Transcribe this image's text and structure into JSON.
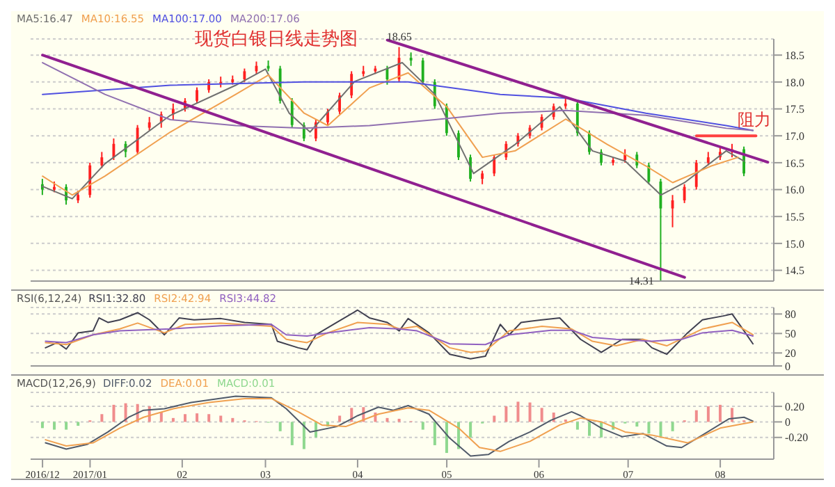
{
  "chart_data": [
    {
      "type": "candlestick",
      "title": "现货白银日线走势图",
      "legend": "top left",
      "grid": "y",
      "tick_labels": "y",
      "xlim": [
        "2016-12-12",
        "2017-08-19"
      ],
      "ylim": [
        14.3,
        18.8
      ],
      "yticks": [
        {
          "value": 14.5,
          "label": "14.5"
        },
        {
          "value": 15,
          "label": "15.0"
        },
        {
          "value": 15.5,
          "label": "15.5"
        },
        {
          "value": 16,
          "label": "16.0"
        },
        {
          "value": 16.5,
          "label": "16.5"
        },
        {
          "value": 17,
          "label": "17.0"
        },
        {
          "value": 17.5,
          "label": "17.5"
        },
        {
          "value": 18,
          "label": "18.0"
        },
        {
          "value": 18.5,
          "label": "18.5"
        }
      ],
      "x": [
        "2016-12-16",
        "2016-12-20",
        "2016-12-24",
        "2016-12-28",
        "2017-01-01",
        "2017-01-05",
        "2017-01-09",
        "2017-01-13",
        "2017-01-17",
        "2017-01-21",
        "2017-01-25",
        "2017-01-29",
        "2017-02-02",
        "2017-02-06",
        "2017-02-10",
        "2017-02-14",
        "2017-02-18",
        "2017-02-22",
        "2017-02-26",
        "2017-03-02",
        "2017-03-06",
        "2017-03-10",
        "2017-03-14",
        "2017-03-18",
        "2017-03-22",
        "2017-03-26",
        "2017-03-30",
        "2017-04-03",
        "2017-04-07",
        "2017-04-11",
        "2017-04-15",
        "2017-04-19",
        "2017-04-23",
        "2017-04-27",
        "2017-05-01",
        "2017-05-05",
        "2017-05-09",
        "2017-05-13",
        "2017-05-17",
        "2017-05-21",
        "2017-05-25",
        "2017-05-29",
        "2017-06-02",
        "2017-06-06",
        "2017-06-10",
        "2017-06-14",
        "2017-06-18",
        "2017-06-22",
        "2017-06-26",
        "2017-06-30",
        "2017-07-04",
        "2017-07-08",
        "2017-07-12",
        "2017-07-16",
        "2017-07-20",
        "2017-07-24",
        "2017-07-28",
        "2017-08-01",
        "2017-08-05",
        "2017-08-09"
      ],
      "ohlc": [
        [
          16.1,
          16.2,
          15.9,
          16.0
        ],
        [
          16.0,
          16.15,
          15.95,
          16.05
        ],
        [
          16.05,
          16.1,
          15.72,
          15.8
        ],
        [
          15.8,
          15.98,
          15.75,
          15.9
        ],
        [
          15.9,
          16.5,
          15.85,
          16.45
        ],
        [
          16.45,
          16.7,
          16.4,
          16.6
        ],
        [
          16.6,
          16.95,
          16.55,
          16.85
        ],
        [
          16.85,
          16.9,
          16.6,
          16.7
        ],
        [
          16.7,
          17.2,
          16.65,
          17.15
        ],
        [
          17.15,
          17.35,
          17.1,
          17.25
        ],
        [
          17.25,
          17.45,
          17.15,
          17.4
        ],
        [
          17.4,
          17.6,
          17.3,
          17.5
        ],
        [
          17.5,
          17.7,
          17.45,
          17.65
        ],
        [
          17.65,
          17.9,
          17.6,
          17.85
        ],
        [
          17.85,
          18.05,
          17.8,
          18.0
        ],
        [
          18.0,
          18.1,
          17.9,
          18.0
        ],
        [
          18.0,
          18.12,
          17.95,
          18.05
        ],
        [
          18.05,
          18.25,
          18.0,
          18.2
        ],
        [
          18.2,
          18.38,
          18.15,
          18.3
        ],
        [
          18.3,
          18.4,
          18.2,
          18.25
        ],
        [
          18.25,
          18.3,
          17.6,
          17.65
        ],
        [
          17.65,
          17.7,
          17.15,
          17.2
        ],
        [
          17.2,
          17.25,
          16.9,
          16.95
        ],
        [
          16.95,
          17.3,
          16.9,
          17.25
        ],
        [
          17.25,
          17.5,
          17.2,
          17.45
        ],
        [
          17.45,
          17.8,
          17.4,
          17.75
        ],
        [
          17.75,
          18.2,
          17.7,
          18.15
        ],
        [
          18.15,
          18.3,
          18.1,
          18.2
        ],
        [
          18.2,
          18.3,
          18.15,
          18.25
        ],
        [
          18.25,
          18.3,
          17.95,
          18.05
        ],
        [
          18.05,
          18.65,
          18.0,
          18.45
        ],
        [
          18.45,
          18.55,
          18.3,
          18.4
        ],
        [
          18.4,
          18.45,
          17.95,
          18.0
        ],
        [
          18.0,
          18.05,
          17.5,
          17.55
        ],
        [
          17.55,
          17.6,
          17.0,
          17.05
        ],
        [
          17.05,
          17.1,
          16.55,
          16.6
        ],
        [
          16.6,
          16.65,
          16.15,
          16.2
        ],
        [
          16.2,
          16.35,
          16.1,
          16.3
        ],
        [
          16.3,
          16.65,
          16.25,
          16.6
        ],
        [
          16.6,
          16.9,
          16.55,
          16.85
        ],
        [
          16.85,
          17.05,
          16.8,
          17.0
        ],
        [
          17.0,
          17.2,
          16.95,
          17.15
        ],
        [
          17.15,
          17.4,
          17.1,
          17.35
        ],
        [
          17.35,
          17.6,
          17.3,
          17.55
        ],
        [
          17.55,
          17.72,
          17.5,
          17.6
        ],
        [
          17.6,
          17.65,
          17.0,
          17.05
        ],
        [
          17.05,
          17.1,
          16.65,
          16.7
        ],
        [
          16.7,
          16.75,
          16.45,
          16.5
        ],
        [
          16.5,
          16.6,
          16.45,
          16.55
        ],
        [
          16.55,
          16.75,
          16.5,
          16.65
        ],
        [
          16.65,
          16.7,
          16.4,
          16.45
        ],
        [
          16.45,
          16.5,
          16.1,
          16.15
        ],
        [
          16.15,
          16.2,
          14.31,
          15.65
        ],
        [
          15.65,
          15.9,
          15.3,
          15.8
        ],
        [
          15.8,
          16.1,
          15.75,
          16.05
        ],
        [
          16.05,
          16.55,
          16.0,
          16.5
        ],
        [
          16.5,
          16.7,
          16.45,
          16.6
        ],
        [
          16.6,
          16.8,
          16.55,
          16.7
        ],
        [
          16.7,
          16.85,
          16.6,
          16.75
        ],
        [
          16.75,
          16.8,
          16.25,
          16.3
        ]
      ],
      "colors": [
        "#20b020",
        "#ff2020",
        "#20b020",
        "#ff2020",
        "#ff2020",
        "#ff2020",
        "#ff2020",
        "#20b020",
        "#ff2020",
        "#ff2020",
        "#ff2020",
        "#ff2020",
        "#ff2020",
        "#ff2020",
        "#ff2020",
        "#ff2020",
        "#ff2020",
        "#ff2020",
        "#ff2020",
        "#20b020",
        "#20b020",
        "#20b020",
        "#20b020",
        "#ff2020",
        "#ff2020",
        "#ff2020",
        "#ff2020",
        "#ff2020",
        "#ff2020",
        "#20b020",
        "#ff2020",
        "#20b020",
        "#20b020",
        "#20b020",
        "#20b020",
        "#20b020",
        "#20b020",
        "#ff2020",
        "#ff2020",
        "#ff2020",
        "#ff2020",
        "#ff2020",
        "#ff2020",
        "#ff2020",
        "#ff2020",
        "#20b020",
        "#20b020",
        "#20b020",
        "#ff2020",
        "#ff2020",
        "#20b020",
        "#20b020",
        "#20b020",
        "#ff2020",
        "#ff2020",
        "#ff2020",
        "#ff2020",
        "#ff2020",
        "#ff2020",
        "#20b020"
      ],
      "series": [
        {
          "name": "MA5:16.47",
          "type": "line",
          "color": "#707070",
          "x": [
            "2016-12-16",
            "2016-12-26",
            "2017-01-06",
            "2017-01-28",
            "2017-02-19",
            "2017-03-01",
            "2017-03-09",
            "2017-03-16",
            "2017-03-31",
            "2017-04-16",
            "2017-04-27",
            "2017-05-10",
            "2017-05-24",
            "2017-06-08",
            "2017-06-19",
            "2017-06-30",
            "2017-07-12",
            "2017-07-20",
            "2017-08-03",
            "2017-08-09"
          ],
          "values": [
            16.06,
            15.83,
            16.48,
            17.38,
            17.94,
            18.24,
            17.42,
            17.07,
            18.01,
            18.36,
            17.77,
            16.3,
            16.84,
            17.54,
            16.72,
            16.53,
            15.9,
            16.13,
            16.72,
            16.53
          ]
        },
        {
          "name": "MA10:16.55",
          "type": "line",
          "color": "#f0a050",
          "x": [
            "2016-12-16",
            "2016-12-26",
            "2017-01-06",
            "2017-01-28",
            "2017-02-19",
            "2017-03-02",
            "2017-03-14",
            "2017-03-22",
            "2017-04-05",
            "2017-04-18",
            "2017-05-01",
            "2017-05-13",
            "2017-05-24",
            "2017-06-10",
            "2017-06-24",
            "2017-07-07",
            "2017-07-16",
            "2017-07-29",
            "2017-08-07"
          ],
          "values": [
            16.25,
            15.9,
            16.25,
            17.07,
            17.77,
            18.13,
            17.42,
            17.19,
            17.89,
            18.17,
            17.54,
            16.6,
            16.72,
            17.31,
            16.84,
            16.44,
            16.13,
            16.44,
            16.6
          ]
        },
        {
          "name": "MA100:17.00",
          "type": "line",
          "color": "#5050e0",
          "x": [
            "2016-12-16",
            "2017-01-28",
            "2017-03-14",
            "2017-04-18",
            "2017-05-19",
            "2017-06-10",
            "2017-07-07",
            "2017-08-03",
            "2017-08-12"
          ],
          "values": [
            17.77,
            17.94,
            18.0,
            18.0,
            17.77,
            17.7,
            17.42,
            17.19,
            17.1
          ]
        },
        {
          "name": "MA200:17.06",
          "type": "line",
          "color": "#9070b0",
          "x": [
            "2016-12-16",
            "2017-01-06",
            "2017-01-28",
            "2017-02-19",
            "2017-03-14",
            "2017-04-05",
            "2017-04-27",
            "2017-05-19",
            "2017-06-10",
            "2017-07-07",
            "2017-08-03",
            "2017-08-12"
          ],
          "values": [
            18.36,
            17.77,
            17.3,
            17.19,
            17.14,
            17.19,
            17.3,
            17.42,
            17.47,
            17.38,
            17.14,
            17.1
          ]
        },
        {
          "type": "line",
          "color": "#902090",
          "x": [
            "2016-12-16",
            "2017-07-20"
          ],
          "values": [
            18.5,
            14.37
          ]
        },
        {
          "type": "line",
          "color": "#902090",
          "x": [
            "2017-04-11",
            "2017-08-17"
          ],
          "values": [
            18.78,
            16.51
          ]
        },
        {
          "type": "line",
          "color": "#ff4040",
          "x": [
            "2017-07-24",
            "2017-08-13"
          ],
          "values": [
            17.0,
            17.0
          ]
        }
      ],
      "annotations": [
        {
          "text": "18.65",
          "x": "2017-04-15",
          "y": 18.65
        },
        {
          "text": "14.31",
          "x": "2017-07-12",
          "y": 14.31
        },
        "阻力"
      ]
    },
    {
      "type": "line",
      "title": "RSI(6,12,24)",
      "legend": "top left",
      "grid": "y",
      "tick_labels": "y",
      "xlim": [
        "2016-12-12",
        "2017-08-19"
      ],
      "ylim": [
        0,
        90
      ],
      "yticks": [
        0,
        20,
        50,
        80
      ],
      "series": [
        {
          "name": "RSI1:32.80",
          "color": "#404050",
          "x": [
            "2016-12-17",
            "2016-12-21",
            "2016-12-24",
            "2016-12-28",
            "2017-01-02",
            "2017-01-04",
            "2017-01-07",
            "2017-01-11",
            "2017-01-17",
            "2017-01-21",
            "2017-01-26",
            "2017-01-31",
            "2017-02-05",
            "2017-02-14",
            "2017-02-22",
            "2017-03-03",
            "2017-03-05",
            "2017-03-12",
            "2017-03-15",
            "2017-03-18",
            "2017-03-25",
            "2017-04-01",
            "2017-04-05",
            "2017-04-11",
            "2017-04-15",
            "2017-04-18",
            "2017-04-25",
            "2017-05-02",
            "2017-05-09",
            "2017-05-14",
            "2017-05-19",
            "2017-05-22",
            "2017-05-26",
            "2017-06-02",
            "2017-06-08",
            "2017-06-15",
            "2017-06-22",
            "2017-06-29",
            "2017-07-06",
            "2017-07-09",
            "2017-07-14",
            "2017-07-21",
            "2017-07-26",
            "2017-08-02",
            "2017-08-05",
            "2017-08-09",
            "2017-08-12"
          ],
          "values": [
            28,
            36,
            26,
            51,
            54,
            74,
            67,
            71,
            82,
            71,
            48,
            74,
            71,
            73,
            67,
            64,
            38,
            28,
            25,
            48,
            67,
            86,
            74,
            67,
            54,
            73,
            51,
            18,
            11,
            15,
            64,
            48,
            67,
            71,
            74,
            41,
            21,
            41,
            41,
            28,
            18,
            51,
            71,
            77,
            80,
            54,
            34
          ]
        },
        {
          "name": "RSI2:42.94",
          "color": "#f0a050",
          "x": [
            "2016-12-17",
            "2016-12-24",
            "2017-01-02",
            "2017-01-11",
            "2017-01-17",
            "2017-01-26",
            "2017-02-02",
            "2017-02-14",
            "2017-03-03",
            "2017-03-08",
            "2017-03-15",
            "2017-03-22",
            "2017-04-01",
            "2017-04-11",
            "2017-04-15",
            "2017-04-21",
            "2017-05-02",
            "2017-05-09",
            "2017-05-14",
            "2017-05-22",
            "2017-06-02",
            "2017-06-12",
            "2017-06-19",
            "2017-06-27",
            "2017-07-06",
            "2017-07-14",
            "2017-07-26",
            "2017-08-05",
            "2017-08-12"
          ],
          "values": [
            36,
            33,
            48,
            57,
            66,
            51,
            64,
            66,
            61,
            41,
            36,
            51,
            67,
            64,
            57,
            61,
            28,
            21,
            23,
            54,
            61,
            57,
            38,
            31,
            41,
            31,
            57,
            67,
            48
          ]
        },
        {
          "name": "RSI3:44.82",
          "color": "#9060c0",
          "x": [
            "2016-12-17",
            "2016-12-24",
            "2017-01-02",
            "2017-01-11",
            "2017-01-28",
            "2017-02-14",
            "2017-03-03",
            "2017-03-08",
            "2017-03-15",
            "2017-03-22",
            "2017-04-05",
            "2017-04-15",
            "2017-04-21",
            "2017-05-02",
            "2017-05-14",
            "2017-05-22",
            "2017-06-05",
            "2017-06-12",
            "2017-06-19",
            "2017-06-27",
            "2017-07-09",
            "2017-07-19",
            "2017-07-26",
            "2017-08-05",
            "2017-08-12"
          ],
          "values": [
            38,
            36,
            48,
            54,
            57,
            62,
            64,
            48,
            46,
            51,
            59,
            57,
            54,
            34,
            33,
            48,
            55,
            55,
            44,
            41,
            38,
            41,
            51,
            55,
            46
          ]
        }
      ]
    },
    {
      "type": "bar",
      "title": "MACD(12,26,9)",
      "legend": "top left",
      "grid": "y",
      "xlim": [
        "2016-12-12",
        "2017-08-19"
      ],
      "ylim": [
        -0.48,
        0.38
      ],
      "yticks": [
        {
          "value": -0.2,
          "label": "-0.20"
        },
        0,
        {
          "value": 0.2,
          "label": "0.20"
        }
      ],
      "xticks": [
        {
          "value": "2016-12-16",
          "label": "2016/12"
        },
        {
          "value": "2017-01",
          "label": "2017/01"
        },
        {
          "value": "2017-02",
          "label": "02"
        },
        {
          "value": "2017-03",
          "label": "03"
        },
        {
          "value": "2017-04",
          "label": "04"
        },
        {
          "value": "2017-05",
          "label": "05"
        },
        {
          "value": "2017-06",
          "label": "06"
        },
        {
          "value": "2017-07",
          "label": "07"
        },
        {
          "value": "2017-08",
          "label": "08"
        }
      ],
      "x": [
        "2016-12-16",
        "2016-12-20",
        "2016-12-24",
        "2016-12-28",
        "2017-01-01",
        "2017-01-05",
        "2017-01-09",
        "2017-01-13",
        "2017-01-17",
        "2017-01-21",
        "2017-01-25",
        "2017-01-29",
        "2017-02-02",
        "2017-02-06",
        "2017-02-10",
        "2017-02-14",
        "2017-02-18",
        "2017-02-22",
        "2017-02-26",
        "2017-03-02",
        "2017-03-06",
        "2017-03-10",
        "2017-03-14",
        "2017-03-18",
        "2017-03-22",
        "2017-03-26",
        "2017-03-30",
        "2017-04-03",
        "2017-04-07",
        "2017-04-11",
        "2017-04-15",
        "2017-04-19",
        "2017-04-23",
        "2017-04-27",
        "2017-05-01",
        "2017-05-05",
        "2017-05-09",
        "2017-05-13",
        "2017-05-17",
        "2017-05-21",
        "2017-05-25",
        "2017-05-29",
        "2017-06-02",
        "2017-06-06",
        "2017-06-10",
        "2017-06-14",
        "2017-06-18",
        "2017-06-22",
        "2017-06-26",
        "2017-06-30",
        "2017-07-04",
        "2017-07-08",
        "2017-07-12",
        "2017-07-16",
        "2017-07-20",
        "2017-07-24",
        "2017-07-28",
        "2017-08-01",
        "2017-08-05",
        "2017-08-09"
      ],
      "series": [
        {
          "name": "DIFF:0.02",
          "type": "line",
          "color": "#505a6a",
          "x": [
            "2016-12-17",
            "2016-12-24",
            "2016-12-31",
            "2017-01-07",
            "2017-01-14",
            "2017-01-19",
            "2017-01-26",
            "2017-02-04",
            "2017-02-19",
            "2017-03-03",
            "2017-03-08",
            "2017-03-16",
            "2017-03-25",
            "2017-04-01",
            "2017-04-08",
            "2017-04-13",
            "2017-04-18",
            "2017-04-25",
            "2017-05-02",
            "2017-05-09",
            "2017-05-15",
            "2017-05-22",
            "2017-05-29",
            "2017-06-05",
            "2017-06-12",
            "2017-06-15",
            "2017-06-22",
            "2017-06-29",
            "2017-07-06",
            "2017-07-14",
            "2017-07-19",
            "2017-07-26",
            "2017-08-04",
            "2017-08-09",
            "2017-08-12"
          ],
          "values": [
            -0.27,
            -0.35,
            -0.29,
            -0.13,
            0.06,
            0.15,
            0.17,
            0.25,
            0.33,
            0.31,
            0.17,
            -0.13,
            -0.06,
            0.08,
            0.19,
            0.15,
            0.21,
            0.1,
            -0.21,
            -0.44,
            -0.42,
            -0.25,
            -0.13,
            0.02,
            0.13,
            0.08,
            -0.08,
            -0.19,
            -0.15,
            -0.31,
            -0.33,
            -0.17,
            0.04,
            0.06,
            0.01
          ]
        },
        {
          "name": "DEA:0.01",
          "type": "line",
          "color": "#f0a050",
          "x": [
            "2016-12-17",
            "2016-12-24",
            "2017-01-02",
            "2017-01-11",
            "2017-01-19",
            "2017-01-29",
            "2017-02-10",
            "2017-02-22",
            "2017-03-03",
            "2017-03-12",
            "2017-03-20",
            "2017-03-28",
            "2017-04-08",
            "2017-04-18",
            "2017-04-25",
            "2017-05-05",
            "2017-05-12",
            "2017-05-19",
            "2017-05-29",
            "2017-06-08",
            "2017-06-15",
            "2017-06-22",
            "2017-06-30",
            "2017-07-09",
            "2017-07-21",
            "2017-08-01",
            "2017-08-12"
          ],
          "values": [
            -0.23,
            -0.31,
            -0.27,
            -0.08,
            0.06,
            0.17,
            0.25,
            0.3,
            0.3,
            0.13,
            -0.04,
            -0.06,
            0.1,
            0.18,
            0.15,
            -0.08,
            -0.33,
            -0.38,
            -0.25,
            -0.04,
            0.05,
            0,
            -0.13,
            -0.17,
            -0.27,
            -0.08,
            0
          ]
        },
        {
          "name": "MACD:0.01",
          "type": "bar",
          "values": [
            -0.08,
            -0.1,
            -0.1,
            -0.05,
            0.02,
            0.1,
            0.22,
            0.24,
            0.23,
            0.2,
            0.12,
            0.05,
            0.1,
            0.11,
            0.1,
            0.08,
            0.05,
            0.02,
            0.01,
            -0.01,
            -0.12,
            -0.3,
            -0.35,
            -0.2,
            -0.06,
            0.08,
            0.18,
            0.19,
            0.12,
            0.05,
            0.04,
            0.01,
            -0.1,
            -0.3,
            -0.4,
            -0.35,
            -0.2,
            -0.02,
            0.08,
            0.2,
            0.26,
            0.25,
            0.18,
            0.12,
            0.03,
            -0.1,
            -0.18,
            -0.2,
            -0.1,
            -0.02,
            -0.06,
            -0.15,
            -0.19,
            -0.12,
            0.02,
            0.15,
            0.2,
            0.22,
            0.18,
            0.02
          ],
          "colors": [
            "#8fd88f",
            "#8fd88f",
            "#8fd88f",
            "#8fd88f",
            "#f08c8c",
            "#f08c8c",
            "#f08c8c",
            "#f08c8c",
            "#f08c8c",
            "#f08c8c",
            "#f08c8c",
            "#f08c8c",
            "#f08c8c",
            "#f08c8c",
            "#f08c8c",
            "#f08c8c",
            "#f08c8c",
            "#f08c8c",
            "#f08c8c",
            "#8fd88f",
            "#8fd88f",
            "#8fd88f",
            "#8fd88f",
            "#8fd88f",
            "#8fd88f",
            "#f08c8c",
            "#f08c8c",
            "#f08c8c",
            "#f08c8c",
            "#f08c8c",
            "#f08c8c",
            "#f08c8c",
            "#8fd88f",
            "#8fd88f",
            "#8fd88f",
            "#8fd88f",
            "#8fd88f",
            "#8fd88f",
            "#f08c8c",
            "#f08c8c",
            "#f08c8c",
            "#f08c8c",
            "#f08c8c",
            "#f08c8c",
            "#f08c8c",
            "#8fd88f",
            "#8fd88f",
            "#8fd88f",
            "#8fd88f",
            "#8fd88f",
            "#8fd88f",
            "#8fd88f",
            "#8fd88f",
            "#8fd88f",
            "#f08c8c",
            "#f08c8c",
            "#f08c8c",
            "#f08c8c",
            "#f08c8c",
            "#f08c8c"
          ]
        }
      ]
    }
  ]
}
